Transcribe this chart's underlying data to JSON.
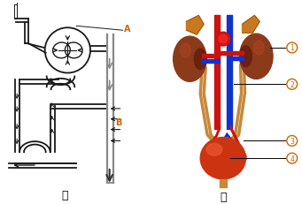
{
  "fig_width": 3.41,
  "fig_height": 2.32,
  "dpi": 100,
  "bg_color": "#ffffff",
  "label_A": "A",
  "label_B": "B",
  "label_jia": "甲",
  "label_yi": "乙",
  "label_color_AB": "#cc6600",
  "label_color_1234": "#cc6600",
  "line_color": "#1a1a1a",
  "kidney_brown": "#8b3a1a",
  "adrenal_orange": "#c87820",
  "artery_red": "#cc1111",
  "vein_blue": "#1133cc",
  "ureter_tan": "#c8883a",
  "bladder_red": "#bb2200",
  "gray_tube": "#888888"
}
